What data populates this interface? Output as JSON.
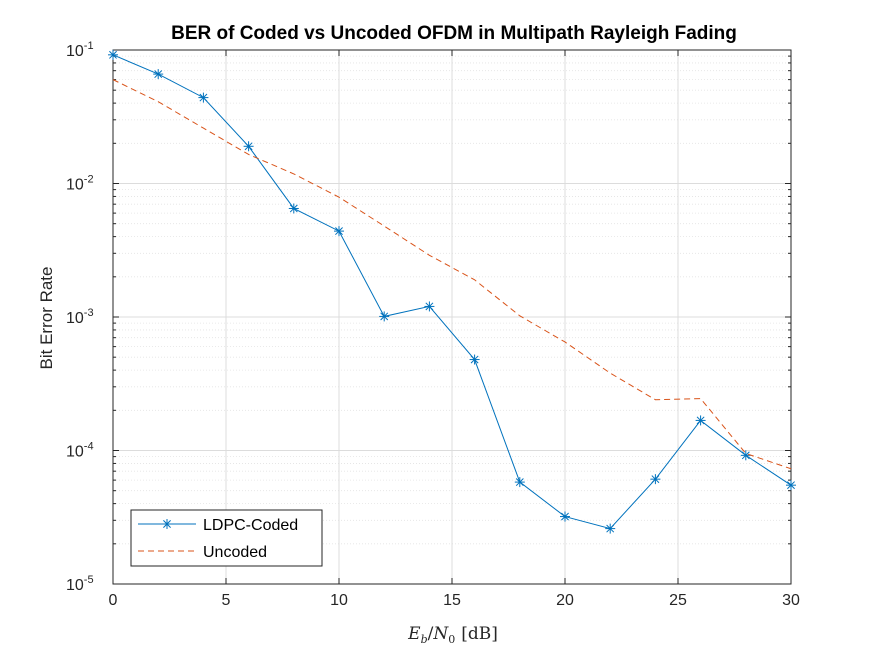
{
  "chart_data": {
    "type": "line",
    "title": "BER of Coded vs Uncoded OFDM in Multipath Rayleigh Fading",
    "xlabel_parts": {
      "E": "E",
      "b": "b",
      "slash": "/",
      "N": "N",
      "zero": "0",
      "unit": "[dB]"
    },
    "ylabel": "Bit Error Rate",
    "y_scale": "log",
    "xlim": [
      0,
      30
    ],
    "ylim": [
      1e-05,
      0.1
    ],
    "xticks": [
      0,
      5,
      10,
      15,
      20,
      25,
      30
    ],
    "xtick_labels": [
      "0",
      "5",
      "10",
      "15",
      "20",
      "25",
      "30"
    ],
    "yticks": [
      {
        "base": "10",
        "exp": "-1"
      },
      {
        "base": "10",
        "exp": "-2"
      },
      {
        "base": "10",
        "exp": "-3"
      },
      {
        "base": "10",
        "exp": "-4"
      },
      {
        "base": "10",
        "exp": "-5"
      }
    ],
    "grid": true,
    "legend_position": "bottom-left",
    "series": [
      {
        "name": "LDPC-Coded",
        "color": "#0072BD",
        "line_style": "solid",
        "marker": "asterisk",
        "x": [
          0,
          2,
          4,
          6,
          8,
          10,
          12,
          14,
          16,
          18,
          20,
          22,
          24,
          26,
          28,
          30
        ],
        "y": [
          0.092,
          0.066,
          0.044,
          0.019,
          0.0065,
          0.0044,
          0.00101,
          0.0012,
          0.00048,
          5.8e-05,
          3.2e-05,
          2.6e-05,
          6.1e-05,
          0.000168,
          9.2e-05,
          5.5e-05
        ]
      },
      {
        "name": "Uncoded",
        "color": "#D95319",
        "line_style": "dashed",
        "marker": "none",
        "x": [
          0,
          2,
          4,
          6,
          8,
          10,
          12,
          14,
          16,
          18,
          20,
          22,
          24,
          26,
          28,
          30
        ],
        "y": [
          0.06,
          0.041,
          0.026,
          0.0165,
          0.0118,
          0.0079,
          0.0048,
          0.0029,
          0.0019,
          0.00102,
          0.00065,
          0.00038,
          0.00024,
          0.000245,
          9.5e-05,
          7.3e-05
        ]
      }
    ]
  }
}
